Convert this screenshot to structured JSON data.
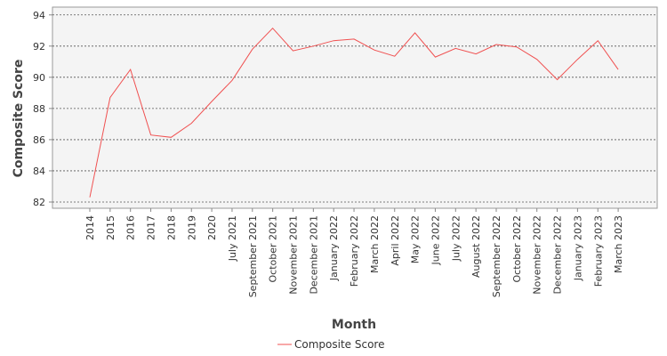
{
  "chart_data": {
    "type": "line",
    "title": "",
    "xlabel": "Month",
    "ylabel": "Composite Score",
    "ylim": [
      81.6,
      94.5
    ],
    "yticks": [
      82,
      84,
      86,
      88,
      90,
      92,
      94
    ],
    "grid": true,
    "legend_position": "bottom-center",
    "categories": [
      "2014",
      "2015",
      "2016",
      "2017",
      "2018",
      "2019",
      "2020",
      "July 2021",
      "September 2021",
      "October 2021",
      "November 2021",
      "December 2021",
      "January 2022",
      "February 2022",
      "March 2022",
      "April 2022",
      "May 2022",
      "June 2022",
      "July 2022",
      "August 2022",
      "September 2022",
      "October 2022",
      "November 2022",
      "December 2022",
      "January 2023",
      "February 2023",
      "March 2023"
    ],
    "series": [
      {
        "name": "Composite Score",
        "color": "#f05050",
        "values": [
          82.3,
          88.7,
          90.5,
          86.3,
          86.15,
          87.05,
          88.45,
          89.8,
          91.8,
          93.15,
          91.7,
          92.0,
          92.35,
          92.45,
          91.75,
          91.35,
          92.85,
          91.3,
          91.85,
          91.5,
          92.1,
          91.95,
          91.15,
          89.85,
          91.15,
          92.35,
          90.5
        ]
      }
    ]
  }
}
